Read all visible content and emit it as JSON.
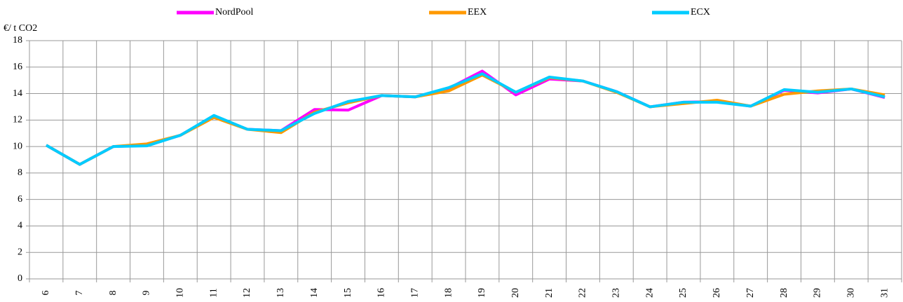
{
  "chart_data": {
    "type": "line",
    "y_label": "€/ t CO2",
    "categories": [
      "6",
      "7",
      "8",
      "9",
      "10",
      "11",
      "12",
      "13",
      "14",
      "15",
      "16",
      "17",
      "18",
      "19",
      "20",
      "21",
      "22",
      "23",
      "24",
      "25",
      "26",
      "27",
      "28",
      "29",
      "30",
      "31"
    ],
    "series": [
      {
        "name": "NordPool",
        "color": "#ff00ff",
        "values": [
          10.1,
          8.65,
          10.0,
          10.1,
          10.85,
          12.3,
          11.3,
          11.2,
          12.8,
          12.75,
          13.85,
          13.75,
          14.4,
          15.7,
          13.9,
          15.1,
          14.95,
          14.15,
          13.0,
          13.35,
          13.4,
          13.05,
          14.25,
          14.05,
          14.35,
          13.7
        ]
      },
      {
        "name": "EEX",
        "color": "#ff9900",
        "values": [
          10.1,
          8.65,
          10.0,
          10.2,
          10.85,
          12.2,
          11.3,
          11.05,
          12.6,
          13.3,
          13.85,
          13.75,
          14.2,
          15.4,
          14.1,
          15.2,
          14.95,
          14.1,
          13.0,
          13.25,
          13.5,
          13.05,
          13.95,
          14.2,
          14.35,
          13.9
        ]
      },
      {
        "name": "ECX",
        "color": "#00ccff",
        "values": [
          10.1,
          8.65,
          10.0,
          10.05,
          10.85,
          12.35,
          11.3,
          11.2,
          12.5,
          13.4,
          13.85,
          13.75,
          14.45,
          15.5,
          14.1,
          15.25,
          14.95,
          14.15,
          13.0,
          13.35,
          13.35,
          13.05,
          14.3,
          14.1,
          14.35,
          13.75
        ]
      }
    ],
    "ylim": [
      0,
      18
    ],
    "yticks": [
      0,
      2,
      4,
      6,
      8,
      10,
      12,
      14,
      16,
      18
    ],
    "grid": true,
    "legend": "top"
  }
}
